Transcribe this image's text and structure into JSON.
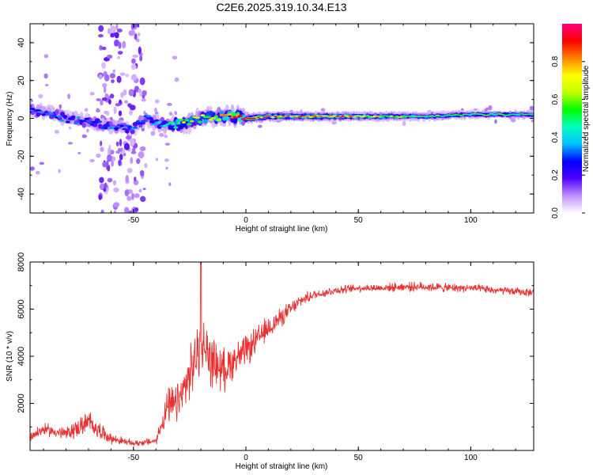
{
  "title": "C2E6.2025.319.10.34.E13",
  "chart_data": [
    {
      "type": "heatmap",
      "xlabel": "Height of straight line (km)",
      "ylabel": "Frequency (Hz)",
      "xlim": [
        -96,
        128
      ],
      "ylim": [
        -50,
        50
      ],
      "xticks": [
        -50,
        0,
        50,
        100
      ],
      "yticks": [
        -40,
        -20,
        0,
        20,
        40
      ],
      "colorbar": {
        "label": "Normalized spectral amplitude",
        "range": [
          0,
          1
        ],
        "ticks": [
          "0.0",
          "0.2",
          "0.4",
          "0.6",
          "0.8"
        ],
        "tick_values": [
          0,
          0.2,
          0.4,
          0.6,
          0.8
        ],
        "colors": [
          "#ffffff",
          "#c090ff",
          "#5000ff",
          "#0000ff",
          "#00c0ff",
          "#00ffc0",
          "#00ff00",
          "#c0ff00",
          "#ffff00",
          "#ff8000",
          "#ff0000",
          "#ff0080"
        ]
      },
      "ridge": {
        "x": [
          -96,
          -90,
          -85,
          -80,
          -75,
          -70,
          -65,
          -60,
          -55,
          -50,
          -45,
          -40,
          -35,
          -30,
          -25,
          -20,
          -15,
          -10,
          -5,
          0,
          10,
          20,
          40,
          60,
          80,
          100,
          128
        ],
        "frequency": [
          5,
          3,
          2,
          0,
          -1,
          -2,
          -3,
          -4,
          -5,
          -6,
          0,
          -2,
          -4,
          -3,
          -2,
          0,
          1,
          1,
          1,
          0,
          1,
          1,
          1,
          1,
          1,
          2,
          2
        ],
        "amplitude": [
          0.3,
          0.3,
          0.3,
          0.3,
          0.3,
          0.3,
          0.3,
          0.3,
          0.3,
          0.3,
          0.3,
          0.35,
          0.4,
          0.6,
          0.5,
          0.6,
          0.6,
          0.7,
          0.8,
          0.9,
          0.9,
          0.85,
          0.8,
          0.65,
          0.55,
          0.5,
          0.5
        ]
      }
    },
    {
      "type": "line",
      "xlabel": "Height of straight line (km)",
      "ylabel": "SNR (10 * v/v)",
      "xlim": [
        -96,
        128
      ],
      "ylim": [
        0,
        8000
      ],
      "xticks": [
        -50,
        0,
        50,
        100
      ],
      "yticks": [
        2000,
        4000,
        6000,
        8000
      ],
      "series": [
        {
          "name": "SNR",
          "color": "#e83030",
          "x": [
            -96,
            -90,
            -80,
            -70,
            -60,
            -50,
            -40,
            -35,
            -30,
            -25,
            -20,
            -15,
            -10,
            -5,
            0,
            5,
            10,
            15,
            20,
            25,
            30,
            40,
            50,
            60,
            70,
            80,
            90,
            100,
            110,
            120,
            128
          ],
          "y": [
            600,
            900,
            700,
            1200,
            500,
            300,
            400,
            1800,
            2000,
            3200,
            4600,
            3800,
            3400,
            3900,
            4200,
            4700,
            5200,
            5600,
            6000,
            6400,
            6600,
            6800,
            6900,
            6900,
            6950,
            6950,
            6900,
            6900,
            6800,
            6750,
            6700
          ],
          "noise": [
            300,
            300,
            350,
            600,
            250,
            150,
            200,
            900,
            1100,
            1300,
            1500,
            1300,
            1100,
            900,
            800,
            700,
            600,
            500,
            400,
            300,
            250,
            220,
            200,
            200,
            220,
            240,
            220,
            200,
            200,
            200,
            200
          ]
        }
      ],
      "spike": {
        "x": -20,
        "y": 8000
      }
    }
  ]
}
